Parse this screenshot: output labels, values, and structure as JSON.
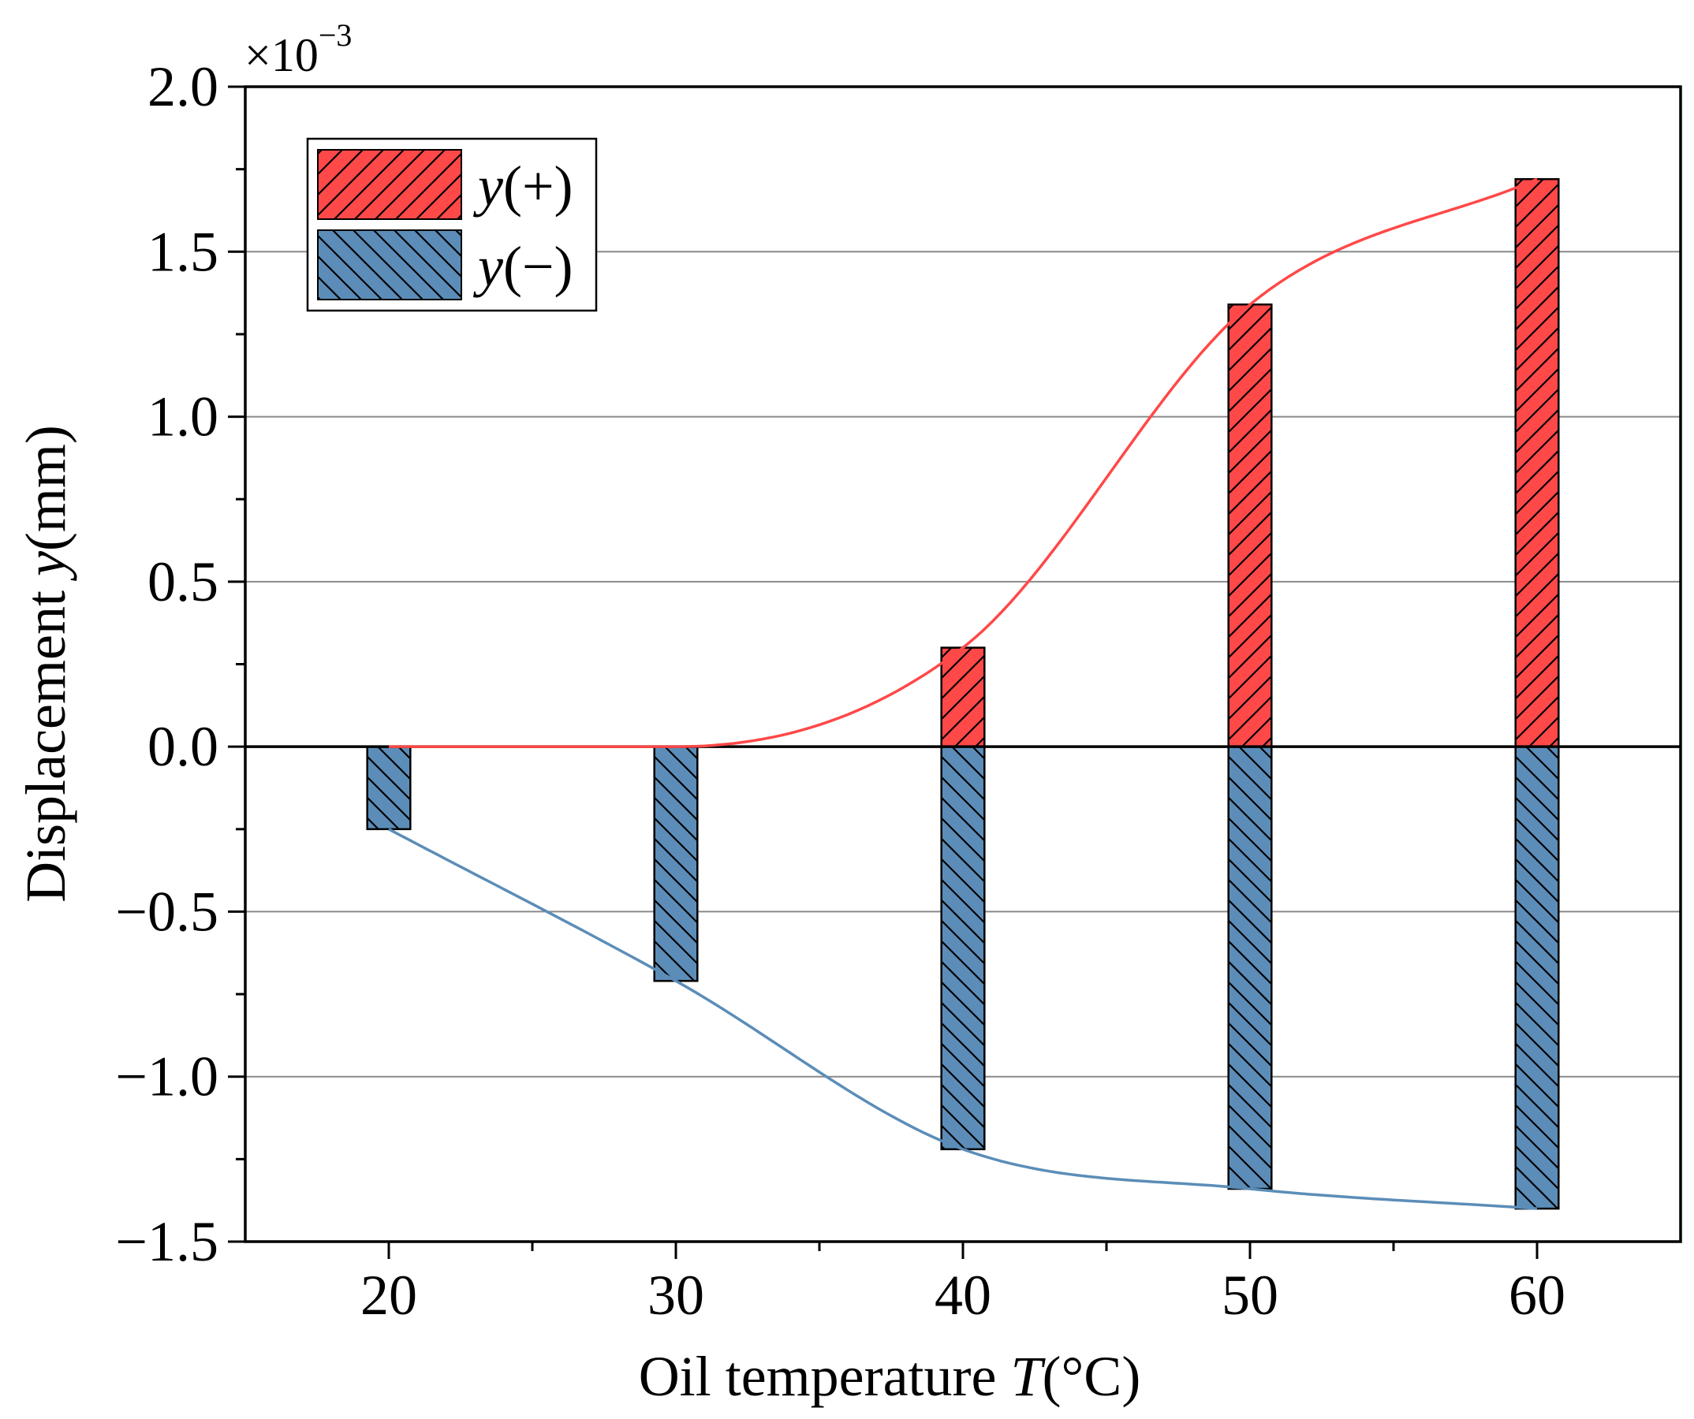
{
  "chart_data": {
    "type": "bar",
    "title": "",
    "xlabel": "Oil temperature T(°C)",
    "xlabel_prefix": "Oil temperature ",
    "xlabel_var": "T",
    "xlabel_suffix": "(°C)",
    "ylabel": "Displacement y(mm)",
    "ylabel_prefix": "Displacement ",
    "ylabel_var": "y",
    "ylabel_suffix": "(mm)",
    "y_multiplier": "×10",
    "y_multiplier_exp": "−3",
    "xlim": [
      15,
      65
    ],
    "ylim": [
      -1.5,
      2.0
    ],
    "x_ticks": [
      20,
      30,
      40,
      50,
      60
    ],
    "x_tick_labels": [
      "20",
      "30",
      "40",
      "50",
      "60"
    ],
    "x_minor_ticks": [
      25,
      35,
      45,
      55
    ],
    "y_ticks": [
      -1.5,
      -1.0,
      -0.5,
      0.0,
      0.5,
      1.0,
      1.5,
      2.0
    ],
    "y_tick_labels": [
      "−1.5",
      "−1.0",
      "−0.5",
      "0.0",
      "0.5",
      "1.0",
      "1.5",
      "2.0"
    ],
    "y_minor_ticks": [
      -1.25,
      -0.75,
      -0.25,
      0.25,
      0.75,
      1.25,
      1.75
    ],
    "grid": true,
    "legend_position": "top-left",
    "categories": [
      20,
      30,
      40,
      50,
      60
    ],
    "series": [
      {
        "name": "y(+)",
        "name_var": "y",
        "name_sign": "(+)",
        "values": [
          0.0,
          0.0,
          0.3,
          1.34,
          1.72
        ],
        "color": "#ff4848",
        "hatch": "forward"
      },
      {
        "name": "y(−)",
        "name_var": "y",
        "name_sign": "(−)",
        "values": [
          -0.25,
          -0.71,
          -1.22,
          -1.34,
          -1.4
        ],
        "color": "#5b8db8",
        "hatch": "backward"
      }
    ],
    "fit_curves": [
      {
        "series": "y(+)",
        "color": "#ff4848"
      },
      {
        "series": "y(−)",
        "color": "#5b8db8"
      }
    ]
  }
}
